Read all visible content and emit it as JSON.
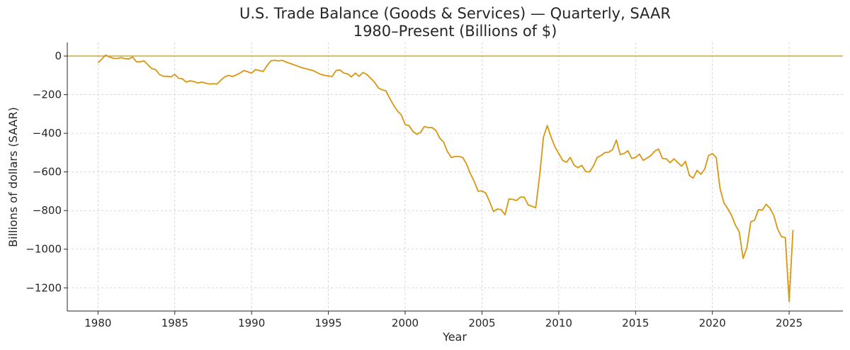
{
  "chart_data": {
    "type": "line",
    "title": "U.S. Trade Balance (Goods & Services) — Quarterly, SAAR",
    "subtitle": "1980–Present (Billions of $)",
    "xlabel": "Year",
    "ylabel": "Billions of dollars (SAAR)",
    "xlim": [
      1978,
      2028.5
    ],
    "ylim": [
      -1320,
      70
    ],
    "xticks": [
      1980,
      1985,
      1990,
      1995,
      2000,
      2005,
      2010,
      2015,
      2020,
      2025
    ],
    "yticks": [
      0,
      -200,
      -400,
      -600,
      -800,
      -1000,
      -1200
    ],
    "ytick_labels": [
      "0",
      "−200",
      "−400",
      "−600",
      "−800",
      "−1000",
      "−1200"
    ],
    "grid": true,
    "reference_line": {
      "y": 0,
      "color": "#c9a31c"
    },
    "series_color": "#d9960f",
    "x": [
      1980.0,
      1980.25,
      1980.5,
      1980.75,
      1981.0,
      1981.25,
      1981.5,
      1981.75,
      1982.0,
      1982.25,
      1982.5,
      1982.75,
      1983.0,
      1983.25,
      1983.5,
      1983.75,
      1984.0,
      1984.25,
      1984.5,
      1984.75,
      1985.0,
      1985.25,
      1985.5,
      1985.75,
      1986.0,
      1986.25,
      1986.5,
      1986.75,
      1987.0,
      1987.25,
      1987.5,
      1987.75,
      1988.0,
      1988.25,
      1988.5,
      1988.75,
      1989.0,
      1989.25,
      1989.5,
      1989.75,
      1990.0,
      1990.25,
      1990.5,
      1990.75,
      1991.0,
      1991.25,
      1991.5,
      1991.75,
      1992.0,
      1992.25,
      1992.5,
      1992.75,
      1993.0,
      1993.25,
      1993.5,
      1993.75,
      1994.0,
      1994.25,
      1994.5,
      1994.75,
      1995.0,
      1995.25,
      1995.5,
      1995.75,
      1996.0,
      1996.25,
      1996.5,
      1996.75,
      1997.0,
      1997.25,
      1997.5,
      1997.75,
      1998.0,
      1998.25,
      1998.5,
      1998.75,
      1999.0,
      1999.25,
      1999.5,
      1999.75,
      2000.0,
      2000.25,
      2000.5,
      2000.75,
      2001.0,
      2001.25,
      2001.5,
      2001.75,
      2002.0,
      2002.25,
      2002.5,
      2002.75,
      2003.0,
      2003.25,
      2003.5,
      2003.75,
      2004.0,
      2004.25,
      2004.5,
      2004.75,
      2005.0,
      2005.25,
      2005.5,
      2005.75,
      2006.0,
      2006.25,
      2006.5,
      2006.75,
      2007.0,
      2007.25,
      2007.5,
      2007.75,
      2008.0,
      2008.25,
      2008.5,
      2008.75,
      2009.0,
      2009.25,
      2009.5,
      2009.75,
      2010.0,
      2010.25,
      2010.5,
      2010.75,
      2011.0,
      2011.25,
      2011.5,
      2011.75,
      2012.0,
      2012.25,
      2012.5,
      2012.75,
      2013.0,
      2013.25,
      2013.5,
      2013.75,
      2014.0,
      2014.25,
      2014.5,
      2014.75,
      2015.0,
      2015.25,
      2015.5,
      2015.75,
      2016.0,
      2016.25,
      2016.5,
      2016.75,
      2017.0,
      2017.25,
      2017.5,
      2017.75,
      2018.0,
      2018.25,
      2018.5,
      2018.75,
      2019.0,
      2019.25,
      2019.5,
      2019.75,
      2020.0,
      2020.25,
      2020.5,
      2020.75,
      2021.0,
      2021.25,
      2021.5,
      2021.75,
      2022.0,
      2022.25,
      2022.5,
      2022.75,
      2023.0,
      2023.25,
      2023.5,
      2023.75,
      2024.0,
      2024.25,
      2024.5,
      2024.75,
      2025.0,
      2025.25
    ],
    "values": [
      -35,
      -15,
      5,
      -5,
      -12,
      -13,
      -8,
      -14,
      -15,
      -5,
      -30,
      -30,
      -25,
      -45,
      -65,
      -70,
      -95,
      -105,
      -105,
      -108,
      -95,
      -115,
      -118,
      -135,
      -128,
      -132,
      -140,
      -135,
      -140,
      -145,
      -143,
      -145,
      -125,
      -108,
      -100,
      -106,
      -98,
      -88,
      -75,
      -82,
      -88,
      -70,
      -75,
      -80,
      -50,
      -25,
      -22,
      -25,
      -22,
      -32,
      -38,
      -45,
      -52,
      -60,
      -65,
      -70,
      -75,
      -85,
      -95,
      -100,
      -103,
      -106,
      -75,
      -72,
      -88,
      -92,
      -108,
      -88,
      -105,
      -85,
      -95,
      -115,
      -135,
      -165,
      -175,
      -180,
      -220,
      -255,
      -285,
      -305,
      -355,
      -360,
      -390,
      -405,
      -395,
      -365,
      -370,
      -370,
      -385,
      -425,
      -445,
      -495,
      -525,
      -520,
      -520,
      -525,
      -560,
      -610,
      -650,
      -700,
      -698,
      -710,
      -755,
      -805,
      -792,
      -795,
      -822,
      -740,
      -742,
      -748,
      -730,
      -730,
      -770,
      -778,
      -785,
      -620,
      -420,
      -360,
      -420,
      -470,
      -505,
      -540,
      -550,
      -525,
      -565,
      -578,
      -566,
      -598,
      -600,
      -570,
      -525,
      -515,
      -500,
      -498,
      -485,
      -435,
      -510,
      -505,
      -490,
      -530,
      -525,
      -508,
      -540,
      -528,
      -515,
      -492,
      -482,
      -530,
      -532,
      -552,
      -532,
      -552,
      -570,
      -545,
      -618,
      -632,
      -592,
      -612,
      -585,
      -515,
      -505,
      -525,
      -685,
      -760,
      -790,
      -825,
      -875,
      -910,
      -1048,
      -990,
      -858,
      -850,
      -795,
      -798,
      -767,
      -788,
      -825,
      -895,
      -935,
      -940,
      -1270,
      -900
    ]
  }
}
